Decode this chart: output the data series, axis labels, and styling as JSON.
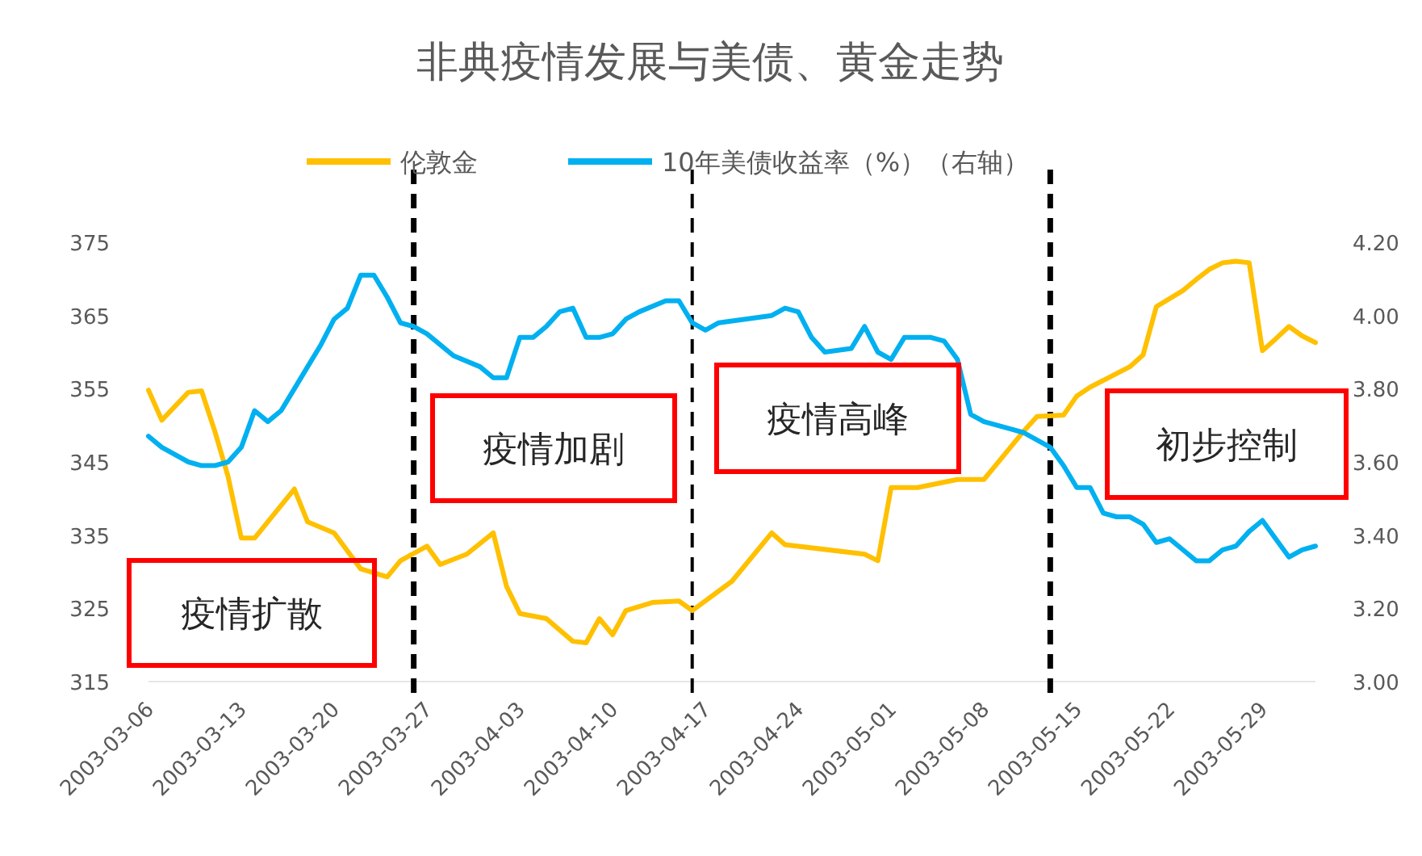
{
  "chart_data": {
    "type": "line",
    "title": "非典疫情发展与美债、黄金走势",
    "legend": "top",
    "marker": "none",
    "grid": false,
    "xlim": [
      "2003-03-06",
      "2003-06-02"
    ],
    "xticks": [
      "2003-03-06",
      "2003-03-13",
      "2003-03-20",
      "2003-03-27",
      "2003-04-03",
      "2003-04-10",
      "2003-04-17",
      "2003-04-24",
      "2003-05-01",
      "2003-05-08",
      "2003-05-15",
      "2003-05-22",
      "2003-05-29"
    ],
    "ylim": [
      315,
      375
    ],
    "yticks": [
      315,
      325,
      335,
      345,
      355,
      365,
      375
    ],
    "y2lim": [
      3,
      4.2
    ],
    "y2ticks": [
      {
        "value": 3,
        "label": "3.00"
      },
      {
        "value": 3.2,
        "label": "3.20"
      },
      {
        "value": 3.4,
        "label": "3.40"
      },
      {
        "value": 3.6,
        "label": "3.60"
      },
      {
        "value": 3.8,
        "label": "3.80"
      },
      {
        "value": 4,
        "label": "4.00"
      },
      {
        "value": 4.2,
        "label": "4.20"
      }
    ],
    "series": [
      {
        "name": "伦敦金",
        "color": "#ffc000",
        "x": [
          "2003-03-06",
          "2003-03-07",
          "2003-03-09",
          "2003-03-10",
          "2003-03-11",
          "2003-03-12",
          "2003-03-13",
          "2003-03-14",
          "2003-03-17",
          "2003-03-18",
          "2003-03-20",
          "2003-03-22",
          "2003-03-24",
          "2003-03-25",
          "2003-03-27",
          "2003-03-28",
          "2003-03-30",
          "2003-04-01",
          "2003-04-02",
          "2003-04-03",
          "2003-04-05",
          "2003-04-07",
          "2003-04-08",
          "2003-04-09",
          "2003-04-10",
          "2003-04-11",
          "2003-04-13",
          "2003-04-15",
          "2003-04-16",
          "2003-04-19",
          "2003-04-22",
          "2003-04-23",
          "2003-04-29",
          "2003-04-30",
          "2003-05-01",
          "2003-05-03",
          "2003-05-06",
          "2003-05-08",
          "2003-05-09",
          "2003-05-10",
          "2003-05-11",
          "2003-05-12",
          "2003-05-14",
          "2003-05-15",
          "2003-05-16",
          "2003-05-19",
          "2003-05-20",
          "2003-05-21",
          "2003-05-23",
          "2003-05-24",
          "2003-05-25",
          "2003-05-26",
          "2003-05-27",
          "2003-05-28",
          "2003-05-29",
          "2003-05-30",
          "2003-05-31",
          "2003-06-01",
          "2003-06-02"
        ],
        "values": [
          354.8,
          350.7,
          354.5,
          354.7,
          349.2,
          343,
          334.6,
          334.6,
          341.3,
          336.8,
          335.3,
          330.4,
          329.3,
          331.5,
          333.5,
          331,
          332.4,
          335.3,
          328,
          324.3,
          323.6,
          320.5,
          320.3,
          323.6,
          321.4,
          324.7,
          325.8,
          326,
          324.7,
          328.7,
          335.3,
          333.7,
          332.4,
          331.5,
          341.5,
          341.5,
          342.6,
          342.6,
          344.8,
          347,
          349.2,
          351.2,
          351.4,
          354,
          355.2,
          358,
          359.6,
          366.2,
          368.4,
          369.9,
          371.3,
          372.2,
          372.4,
          372.2,
          360.2,
          361.8,
          363.5,
          362.2,
          361.3
        ]
      },
      {
        "name": "10年美债收益率（%）（右轴）",
        "color": "#00b0f0",
        "axis": "y2",
        "x": [
          "2003-03-06",
          "2003-03-07",
          "2003-03-09",
          "2003-03-10",
          "2003-03-11",
          "2003-03-12",
          "2003-03-13",
          "2003-03-14",
          "2003-03-15",
          "2003-03-16",
          "2003-03-17",
          "2003-03-18",
          "2003-03-19",
          "2003-03-20",
          "2003-03-21",
          "2003-03-22",
          "2003-03-23",
          "2003-03-24",
          "2003-03-25",
          "2003-03-26",
          "2003-03-27",
          "2003-03-29",
          "2003-03-31",
          "2003-04-01",
          "2003-04-02",
          "2003-04-03",
          "2003-04-04",
          "2003-04-05",
          "2003-04-06",
          "2003-04-07",
          "2003-04-08",
          "2003-04-09",
          "2003-04-10",
          "2003-04-11",
          "2003-04-12",
          "2003-04-14",
          "2003-04-15",
          "2003-04-16",
          "2003-04-17",
          "2003-04-18",
          "2003-04-20",
          "2003-04-22",
          "2003-04-23",
          "2003-04-24",
          "2003-04-25",
          "2003-04-26",
          "2003-04-28",
          "2003-04-29",
          "2003-04-30",
          "2003-05-01",
          "2003-05-02",
          "2003-05-04",
          "2003-05-05",
          "2003-05-06",
          "2003-05-07",
          "2003-05-08",
          "2003-05-10",
          "2003-05-11",
          "2003-05-13",
          "2003-05-14",
          "2003-05-15",
          "2003-05-16",
          "2003-05-17",
          "2003-05-18",
          "2003-05-19",
          "2003-05-20",
          "2003-05-21",
          "2003-05-22",
          "2003-05-23",
          "2003-05-24",
          "2003-05-25",
          "2003-05-26",
          "2003-05-27",
          "2003-05-28",
          "2003-05-29",
          "2003-05-30",
          "2003-05-31",
          "2003-06-01",
          "2003-06-02"
        ],
        "values": [
          3.67,
          3.64,
          3.6,
          3.59,
          3.59,
          3.6,
          3.64,
          3.74,
          3.71,
          3.74,
          3.8,
          3.86,
          3.92,
          3.99,
          4.02,
          4.11,
          4.11,
          4.05,
          3.98,
          3.97,
          3.95,
          3.89,
          3.86,
          3.83,
          3.83,
          3.94,
          3.94,
          3.97,
          4.01,
          4.02,
          3.94,
          3.94,
          3.95,
          3.99,
          4.01,
          4.04,
          4.04,
          3.98,
          3.96,
          3.98,
          3.99,
          4,
          4.02,
          4.01,
          3.94,
          3.9,
          3.91,
          3.97,
          3.9,
          3.88,
          3.94,
          3.94,
          3.93,
          3.88,
          3.73,
          3.71,
          3.69,
          3.68,
          3.64,
          3.59,
          3.53,
          3.53,
          3.46,
          3.45,
          3.45,
          3.43,
          3.38,
          3.39,
          3.36,
          3.33,
          3.33,
          3.36,
          3.37,
          3.41,
          3.44,
          3.39,
          3.34,
          3.36,
          3.37
        ]
      }
    ],
    "ref_lines": [
      {
        "axis": "x",
        "value": "2003-03-26",
        "color": "#000000",
        "line_style": "dashed"
      },
      {
        "axis": "x",
        "value": "2003-04-16",
        "color": "#000000",
        "line_style": "dashed"
      },
      {
        "axis": "x",
        "value": "2003-05-13",
        "color": "#000000",
        "line_style": "dashed"
      }
    ],
    "annotations": [
      "疫情扩散",
      "疫情加剧",
      "疫情高峰",
      "初步控制"
    ]
  }
}
